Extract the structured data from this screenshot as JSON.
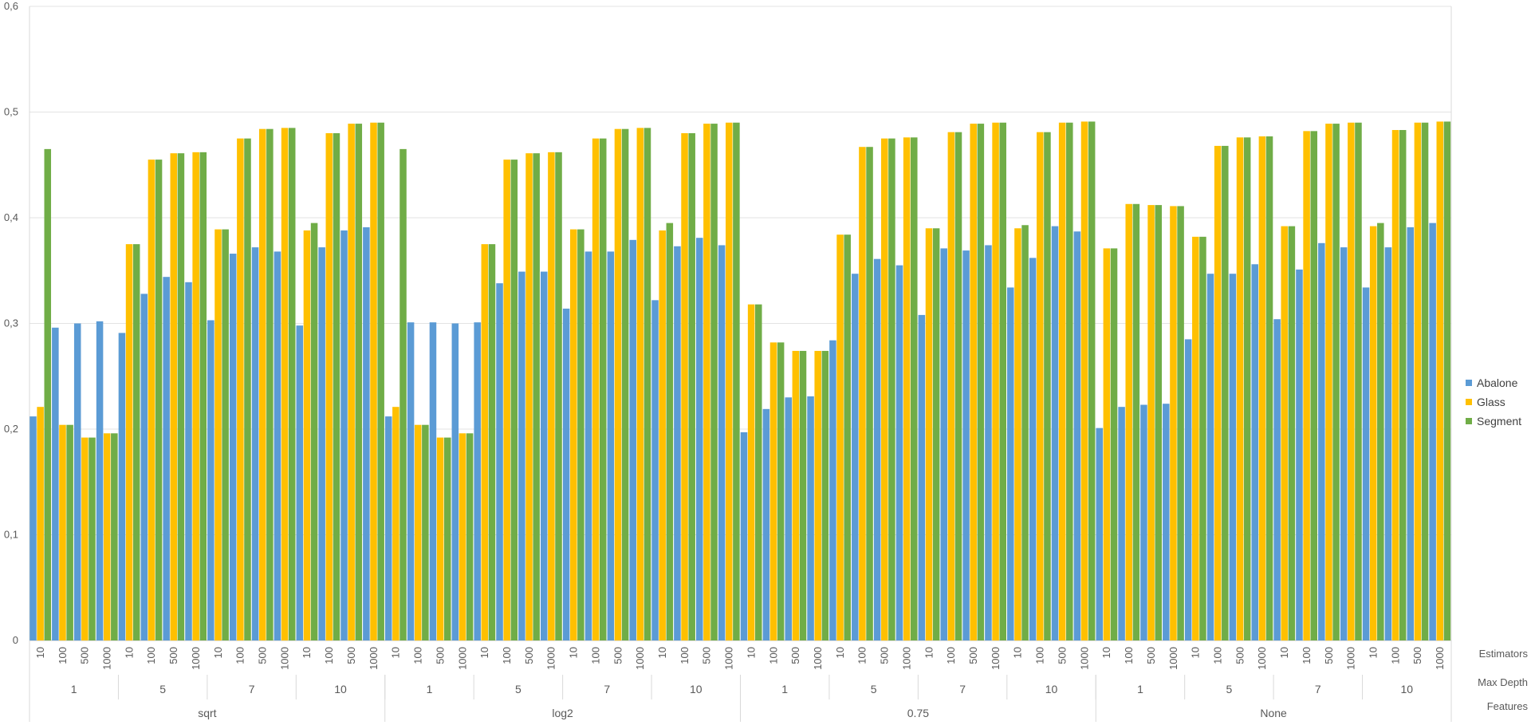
{
  "chart_data": {
    "type": "bar",
    "ylim": [
      0,
      0.6
    ],
    "yticks": [
      "0",
      "0,1",
      "0,2",
      "0,3",
      "0,4",
      "0,5",
      "0,6"
    ],
    "grid": true,
    "legend_position": "right",
    "level_titles": {
      "estimators": "Estimators",
      "max_depth": "Max Depth",
      "features": "Features"
    },
    "estimators": [
      "10",
      "100",
      "500",
      "1000"
    ],
    "max_depth": [
      "1",
      "5",
      "7",
      "10"
    ],
    "features": [
      "sqrt",
      "log2",
      "0.75",
      "None"
    ],
    "categories_note": "Categories ordered Features > Max Depth > Estimators (64 groups)",
    "series": [
      {
        "name": "Abalone",
        "color": "#5B9BD5",
        "values": [
          0.212,
          0.296,
          0.3,
          0.302,
          0.291,
          0.328,
          0.344,
          0.339,
          0.303,
          0.366,
          0.372,
          0.368,
          0.298,
          0.372,
          0.388,
          0.391,
          0.212,
          0.301,
          0.301,
          0.3,
          0.301,
          0.338,
          0.349,
          0.349,
          0.314,
          0.368,
          0.368,
          0.379,
          0.322,
          0.373,
          0.381,
          0.374,
          0.197,
          0.219,
          0.23,
          0.231,
          0.284,
          0.347,
          0.361,
          0.355,
          0.308,
          0.371,
          0.369,
          0.374,
          0.334,
          0.362,
          0.392,
          0.387,
          0.201,
          0.221,
          0.223,
          0.224,
          0.285,
          0.347,
          0.347,
          0.356,
          0.304,
          0.351,
          0.376,
          0.372,
          0.334,
          0.372,
          0.391,
          0.395
        ]
      },
      {
        "name": "Glass",
        "color": "#FFC000",
        "values": [
          0.221,
          0.204,
          0.192,
          0.196,
          0.375,
          0.455,
          0.461,
          0.462,
          0.389,
          0.475,
          0.484,
          0.485,
          0.388,
          0.48,
          0.489,
          0.49,
          0.221,
          0.204,
          0.192,
          0.196,
          0.375,
          0.455,
          0.461,
          0.462,
          0.389,
          0.475,
          0.484,
          0.485,
          0.388,
          0.48,
          0.489,
          0.49,
          0.318,
          0.282,
          0.274,
          0.274,
          0.384,
          0.467,
          0.475,
          0.476,
          0.39,
          0.481,
          0.489,
          0.49,
          0.39,
          0.481,
          0.49,
          0.491,
          0.371,
          0.413,
          0.412,
          0.411,
          0.382,
          0.468,
          0.476,
          0.477,
          0.392,
          0.482,
          0.489,
          0.49,
          0.392,
          0.483,
          0.49,
          0.491
        ]
      },
      {
        "name": "Segment",
        "color": "#70AD47",
        "values": [
          0.465,
          0.204,
          0.192,
          0.196,
          0.375,
          0.455,
          0.461,
          0.462,
          0.389,
          0.475,
          0.484,
          0.485,
          0.395,
          0.48,
          0.489,
          0.49,
          0.465,
          0.204,
          0.192,
          0.196,
          0.375,
          0.455,
          0.461,
          0.462,
          0.389,
          0.475,
          0.484,
          0.485,
          0.395,
          0.48,
          0.489,
          0.49,
          0.318,
          0.282,
          0.274,
          0.274,
          0.384,
          0.467,
          0.475,
          0.476,
          0.39,
          0.481,
          0.489,
          0.49,
          0.393,
          0.481,
          0.49,
          0.491,
          0.371,
          0.413,
          0.412,
          0.411,
          0.382,
          0.468,
          0.476,
          0.477,
          0.392,
          0.482,
          0.489,
          0.49,
          0.395,
          0.483,
          0.49,
          0.491
        ]
      }
    ]
  }
}
